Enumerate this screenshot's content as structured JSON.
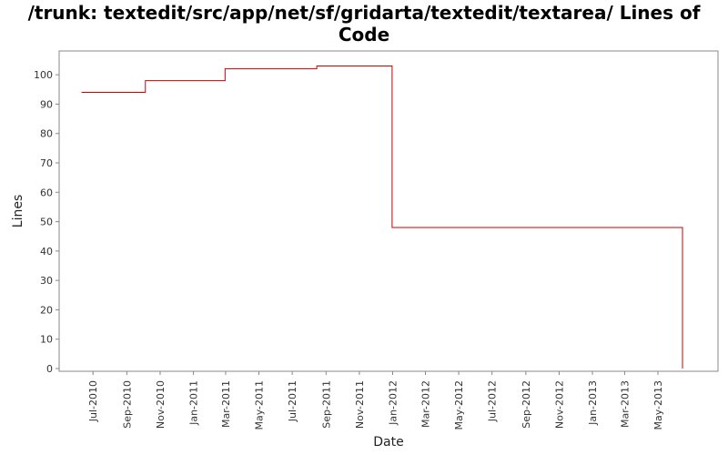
{
  "chart_data": {
    "type": "line",
    "step": true,
    "title": "/trunk: textedit/src/app/net/sf/gridarta/textedit/textarea/ Lines of Code",
    "xlabel": "Date",
    "ylabel": "Lines",
    "ylim": [
      0,
      105
    ],
    "yticks": [
      0,
      10,
      20,
      30,
      40,
      50,
      60,
      70,
      80,
      90,
      100
    ],
    "xlim": [
      "2010-05-25",
      "2013-07-25"
    ],
    "xticks": [
      {
        "date": "2010-07-01",
        "label": "Jul-2010"
      },
      {
        "date": "2010-09-01",
        "label": "Sep-2010"
      },
      {
        "date": "2010-11-01",
        "label": "Nov-2010"
      },
      {
        "date": "2011-01-01",
        "label": "Jan-2011"
      },
      {
        "date": "2011-03-01",
        "label": "Mar-2011"
      },
      {
        "date": "2011-05-01",
        "label": "May-2011"
      },
      {
        "date": "2011-07-01",
        "label": "Jul-2011"
      },
      {
        "date": "2011-09-01",
        "label": "Sep-2011"
      },
      {
        "date": "2011-11-01",
        "label": "Nov-2011"
      },
      {
        "date": "2012-01-01",
        "label": "Jan-2012"
      },
      {
        "date": "2012-03-01",
        "label": "Mar-2012"
      },
      {
        "date": "2012-05-01",
        "label": "May-2012"
      },
      {
        "date": "2012-07-01",
        "label": "Jul-2012"
      },
      {
        "date": "2012-09-01",
        "label": "Sep-2012"
      },
      {
        "date": "2012-11-01",
        "label": "Nov-2012"
      },
      {
        "date": "2013-01-01",
        "label": "Jan-2013"
      },
      {
        "date": "2013-03-01",
        "label": "Mar-2013"
      },
      {
        "date": "2013-05-01",
        "label": "May-2013"
      }
    ],
    "series": [
      {
        "color": "#cc0000",
        "points": [
          {
            "x": "2010-06-10",
            "y": 94
          },
          {
            "x": "2010-10-05",
            "y": 98
          },
          {
            "x": "2011-02-28",
            "y": 102
          },
          {
            "x": "2011-08-15",
            "y": 103
          },
          {
            "x": "2011-12-31",
            "y": 48
          },
          {
            "x": "2013-06-15",
            "y": 0
          }
        ]
      }
    ],
    "grid": false,
    "legend": "none"
  }
}
